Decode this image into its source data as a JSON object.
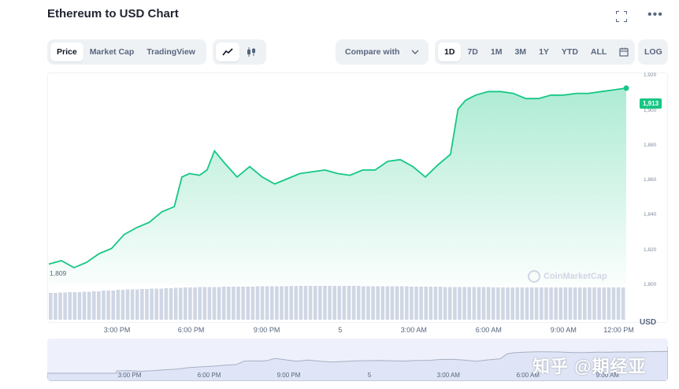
{
  "header": {
    "title": "Ethereum to USD Chart"
  },
  "view_tabs": [
    "Price",
    "Market Cap",
    "TradingView"
  ],
  "chart_type_icons": [
    "line-chart-icon",
    "candlestick-icon"
  ],
  "compare": {
    "label": "Compare with"
  },
  "ranges": [
    "1D",
    "7D",
    "1M",
    "3M",
    "1Y",
    "YTD",
    "ALL"
  ],
  "log_label": "LOG",
  "current_price": "1,913",
  "start_price": "1,809",
  "watermark": "CoinMarketCap",
  "currency": "USD",
  "zh_watermark": "知乎 @期经亚",
  "chart_data": {
    "type": "area",
    "y_ticks": [
      "1,920",
      "1,900",
      "1,880",
      "1,860",
      "1,840",
      "1,820",
      "1,800"
    ],
    "ylim": [
      1800,
      1922
    ],
    "x_ticks": [
      "3:00 PM",
      "6:00 PM",
      "9:00 PM",
      "5",
      "3:00 AM",
      "6:00 AM",
      "9:00 AM",
      "12:00 PM"
    ],
    "nav_x_ticks": [
      "3:00 PM",
      "6:00 PM",
      "9:00 PM",
      "5",
      "3:00 AM",
      "6:00 AM",
      "9:00 AM"
    ],
    "hours": [
      0,
      0.5,
      1,
      1.5,
      2,
      2.5,
      3,
      3.5,
      4,
      4.5,
      5,
      5.3,
      5.6,
      6,
      6.3,
      6.6,
      7,
      7.5,
      8,
      8.5,
      9,
      9.5,
      10,
      10.5,
      11,
      11.5,
      12,
      12.5,
      13,
      13.5,
      14,
      14.5,
      15,
      15.5,
      16,
      16.3,
      16.6,
      17,
      17.5,
      18,
      18.5,
      19,
      19.5,
      20,
      20.5,
      21,
      21.5,
      22,
      22.5,
      23
    ],
    "values": [
      1812,
      1814,
      1810,
      1813,
      1818,
      1821,
      1829,
      1833,
      1836,
      1842,
      1845,
      1862,
      1864,
      1863,
      1866,
      1877,
      1870,
      1862,
      1868,
      1862,
      1858,
      1861,
      1864,
      1865,
      1866,
      1864,
      1863,
      1866,
      1866,
      1871,
      1872,
      1868,
      1862,
      1869,
      1875,
      1901,
      1906,
      1909,
      1911,
      1911,
      1910,
      1907,
      1907,
      1909,
      1909,
      1910,
      1910,
      1911,
      1912,
      1913
    ],
    "volume_relative": [
      0.68,
      0.69,
      0.7,
      0.71,
      0.72,
      0.74,
      0.76,
      0.77,
      0.78,
      0.79,
      0.8,
      0.81,
      0.82,
      0.83,
      0.83,
      0.84,
      0.84,
      0.84,
      0.85,
      0.85,
      0.85,
      0.86,
      0.86,
      0.86,
      0.86,
      0.86,
      0.86,
      0.85,
      0.85,
      0.85,
      0.85,
      0.84,
      0.84,
      0.84,
      0.83,
      0.83,
      0.83,
      0.83,
      0.82,
      0.82,
      0.82,
      0.82,
      0.82,
      0.82,
      0.82,
      0.82,
      0.82,
      0.82,
      0.82,
      0.82
    ],
    "line_color": "#16c784",
    "volume_color": "#cfd6e4",
    "grid": false
  }
}
